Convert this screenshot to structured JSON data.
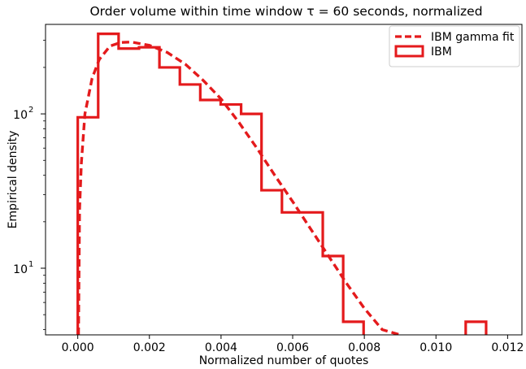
{
  "chart_data": {
    "type": "histogram",
    "title": "Order volume within time window τ = 60 seconds, normalized",
    "xlabel": "Normalized number of quotes",
    "ylabel": "Empirical density",
    "xlim": [
      -0.0009,
      0.0124
    ],
    "ylim": [
      3.7,
      380
    ],
    "yscale": "log",
    "grid": false,
    "legend_position": "top-right",
    "color": "#e41a1c",
    "x_ticks": [
      {
        "value": 0.0,
        "label": "0.000"
      },
      {
        "value": 0.002,
        "label": "0.002"
      },
      {
        "value": 0.004,
        "label": "0.004"
      },
      {
        "value": 0.006,
        "label": "0.006"
      },
      {
        "value": 0.008,
        "label": "0.008"
      },
      {
        "value": 0.01,
        "label": "0.010"
      },
      {
        "value": 0.012,
        "label": "0.012"
      }
    ],
    "y_ticks": [
      {
        "value": 10,
        "base": "10",
        "exp": "1"
      },
      {
        "value": 100,
        "base": "10",
        "exp": "2"
      }
    ],
    "y_minor_ticks": [
      4,
      5,
      6,
      7,
      8,
      9,
      20,
      30,
      40,
      50,
      60,
      70,
      80,
      90,
      200,
      300
    ],
    "series": [
      {
        "name": "IBM",
        "kind": "step-histogram",
        "bin_edges": [
          0.0,
          0.00057,
          0.00114,
          0.00171,
          0.00228,
          0.00285,
          0.00342,
          0.00399,
          0.00456,
          0.00513,
          0.0057,
          0.00627,
          0.00684,
          0.00741,
          0.00798,
          0.00855,
          0.00912,
          0.00969,
          0.01026,
          0.01083,
          0.0114
        ],
        "values": [
          95,
          330,
          265,
          270,
          200,
          155,
          123,
          115,
          100,
          32,
          23,
          23,
          12,
          4.5,
          3.0,
          0,
          0,
          0,
          0,
          4.5
        ]
      },
      {
        "name": "IBM gamma fit",
        "kind": "dashed-line",
        "x": [
          2e-05,
          5e-05,
          0.0001,
          0.0002,
          0.0004,
          0.0006,
          0.0009,
          0.0012,
          0.0015,
          0.002,
          0.0025,
          0.003,
          0.0035,
          0.004,
          0.0045,
          0.005,
          0.0055,
          0.006,
          0.0065,
          0.007,
          0.0075,
          0.008,
          0.0085,
          0.009
        ],
        "y": [
          3.7,
          24,
          48,
          100,
          170,
          225,
          275,
          290,
          292,
          278,
          250,
          210,
          165,
          125,
          88,
          60,
          40,
          27,
          18,
          12,
          8,
          5.5,
          4,
          3.7
        ]
      }
    ]
  }
}
